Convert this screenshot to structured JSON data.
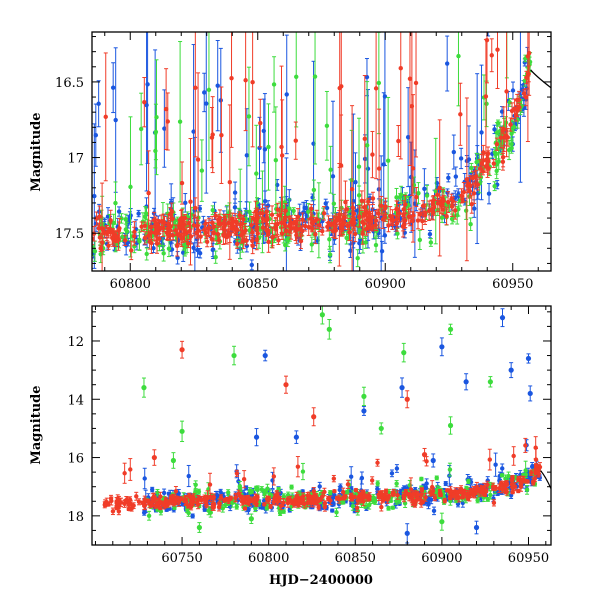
{
  "chart_data": [
    {
      "type": "scatter",
      "panel": "top",
      "title": "",
      "xlabel": "",
      "ylabel": "Magnitude",
      "xlim": [
        60785,
        60965
      ],
      "ylim": [
        17.75,
        16.17
      ],
      "y_inverted": true,
      "xticks": [
        60800,
        60850,
        60900,
        60950
      ],
      "xtick_labels": [
        "60800",
        "60850",
        "60900",
        "60950"
      ],
      "yticks": [
        16.5,
        17,
        17.5
      ],
      "ytick_labels": [
        "16.5",
        "17",
        "17.5"
      ],
      "series": [
        {
          "name": "blue",
          "color": "#1a56e0"
        },
        {
          "name": "green",
          "color": "#3ddc3d"
        },
        {
          "name": "red",
          "color": "#f03c28"
        }
      ],
      "trend": {
        "x": [
          60785,
          60800,
          60830,
          60860,
          60890,
          60910,
          60925,
          60935,
          60942,
          60948,
          60953,
          60957
        ],
        "y": [
          17.5,
          17.49,
          17.47,
          17.45,
          17.42,
          17.38,
          17.3,
          17.15,
          17.0,
          16.85,
          16.6,
          16.42
        ]
      }
    },
    {
      "type": "scatter",
      "panel": "bottom",
      "title": "",
      "xlabel": "HJD−2400000",
      "ylabel": "Magnitude",
      "xlim": [
        60698,
        60963
      ],
      "ylim": [
        19.0,
        10.8
      ],
      "y_inverted": true,
      "xticks": [
        60750,
        60800,
        60850,
        60900,
        60950
      ],
      "xtick_labels": [
        "60750",
        "60800",
        "60850",
        "60900",
        "60950"
      ],
      "yticks": [
        12,
        14,
        16,
        18
      ],
      "ytick_labels": [
        "12",
        "14",
        "16",
        "18"
      ],
      "series": [
        {
          "name": "blue",
          "color": "#1a56e0"
        },
        {
          "name": "green",
          "color": "#3ddc3d"
        },
        {
          "name": "red",
          "color": "#f03c28"
        }
      ],
      "trend": {
        "x": [
          60705,
          60750,
          60800,
          60850,
          60900,
          60925,
          60940,
          60950,
          60957
        ],
        "y": [
          17.55,
          17.5,
          17.45,
          17.4,
          17.3,
          17.15,
          16.95,
          16.7,
          16.45
        ]
      },
      "outliers": [
        {
          "series": "green",
          "x": 60831,
          "y": 11.1
        },
        {
          "series": "green",
          "x": 60835,
          "y": 11.6
        },
        {
          "series": "blue",
          "x": 60935,
          "y": 11.2
        },
        {
          "series": "red",
          "x": 60750,
          "y": 12.3
        },
        {
          "series": "green",
          "x": 60780,
          "y": 12.5
        },
        {
          "series": "blue",
          "x": 60798,
          "y": 12.5
        },
        {
          "series": "green",
          "x": 60905,
          "y": 11.6
        },
        {
          "series": "blue",
          "x": 60900,
          "y": 12.2
        },
        {
          "series": "blue",
          "x": 60950,
          "y": 12.6
        },
        {
          "series": "green",
          "x": 60878,
          "y": 12.4
        },
        {
          "series": "red",
          "x": 60810,
          "y": 13.5
        },
        {
          "series": "green",
          "x": 60728,
          "y": 13.6
        },
        {
          "series": "blue",
          "x": 60940,
          "y": 13.0
        },
        {
          "series": "green",
          "x": 60928,
          "y": 13.4
        },
        {
          "series": "blue",
          "x": 60914,
          "y": 13.4
        },
        {
          "series": "green",
          "x": 60855,
          "y": 13.9
        },
        {
          "series": "red",
          "x": 60880,
          "y": 14.0
        },
        {
          "series": "blue",
          "x": 60877,
          "y": 13.6
        },
        {
          "series": "blue",
          "x": 60855,
          "y": 14.4
        },
        {
          "series": "red",
          "x": 60826,
          "y": 14.6
        },
        {
          "series": "blue",
          "x": 60951,
          "y": 13.8
        },
        {
          "series": "green",
          "x": 60750,
          "y": 15.1
        },
        {
          "series": "green",
          "x": 60865,
          "y": 15.0
        },
        {
          "series": "blue",
          "x": 60793,
          "y": 15.3
        },
        {
          "series": "blue",
          "x": 60816,
          "y": 15.3
        },
        {
          "series": "green",
          "x": 60905,
          "y": 14.9
        },
        {
          "series": "red",
          "x": 60734,
          "y": 16.0
        },
        {
          "series": "green",
          "x": 60745,
          "y": 16.1
        },
        {
          "series": "red",
          "x": 60890,
          "y": 15.9
        },
        {
          "series": "blue",
          "x": 60895,
          "y": 16.1
        },
        {
          "series": "green",
          "x": 60760,
          "y": 18.4
        },
        {
          "series": "green",
          "x": 60790,
          "y": 18.1
        },
        {
          "series": "blue",
          "x": 60880,
          "y": 18.6
        },
        {
          "series": "green",
          "x": 60900,
          "y": 18.2
        },
        {
          "series": "blue",
          "x": 60920,
          "y": 18.4
        }
      ]
    }
  ]
}
